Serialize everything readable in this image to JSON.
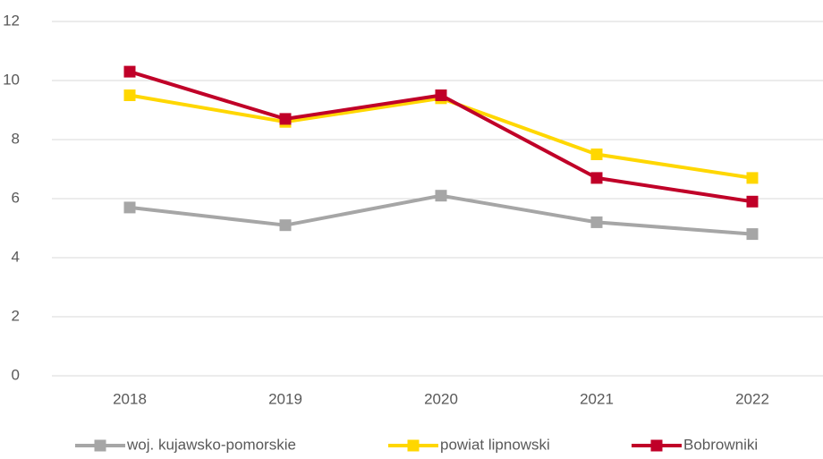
{
  "chart_data": {
    "type": "line",
    "categories": [
      "2018",
      "2019",
      "2020",
      "2021",
      "2022"
    ],
    "series": [
      {
        "name": "woj. kujawsko-pomorskie",
        "color": "#a6a6a6",
        "values": [
          5.7,
          5.1,
          6.1,
          5.2,
          4.8
        ]
      },
      {
        "name": "powiat lipnowski",
        "color": "#ffd700",
        "values": [
          9.5,
          8.6,
          9.4,
          7.5,
          6.7
        ]
      },
      {
        "name": "Bobrowniki",
        "color": "#c00028",
        "values": [
          10.3,
          8.7,
          9.5,
          6.7,
          5.9
        ]
      }
    ],
    "ylim": [
      0,
      12
    ],
    "yticks": [
      0,
      2,
      4,
      6,
      8,
      10,
      12
    ],
    "grid": true,
    "legend": "bottom"
  }
}
